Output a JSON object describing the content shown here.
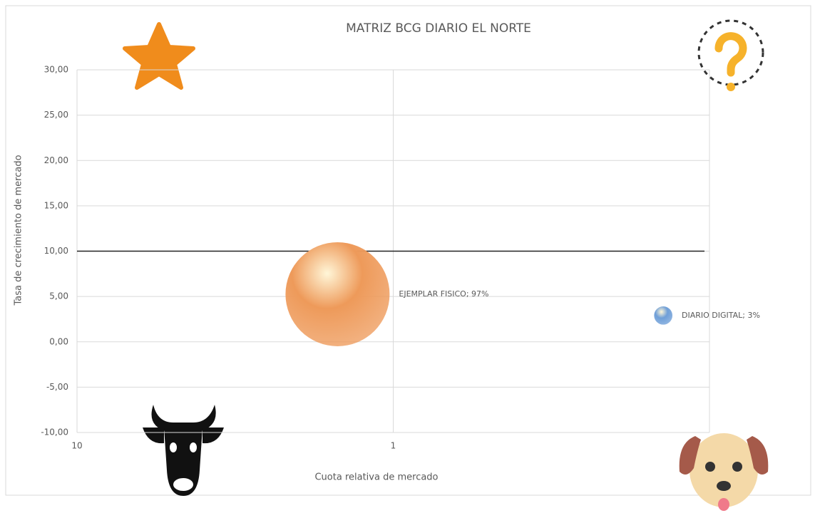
{
  "chart_data": {
    "type": "bubble",
    "title": "MATRIZ BCG DIARIO EL NORTE",
    "x_label": "Cuota relativa de mercado",
    "y_label": "Tasa de crecimiento de mercado",
    "x": [
      1.5,
      0.14
    ],
    "values": [
      5.25,
      2.9
    ],
    "sizes": [
      97,
      3
    ],
    "value_labels": [
      "EJEMPLAR FISICO; 97%",
      "DIARIO DIGITAL; 3%"
    ],
    "colors": [
      "#ee9a5a",
      "#6f9fd8"
    ],
    "xlim": [
      10,
      0.1
    ],
    "xticks": [
      10,
      1
    ],
    "x_log_scale": true,
    "ylim": [
      -10,
      30
    ],
    "yticks": [
      {
        "value": -10,
        "label": "-10,00"
      },
      {
        "value": -5,
        "label": "-5,00"
      },
      {
        "value": 0,
        "label": "0,00"
      },
      {
        "value": 5,
        "label": "5,00"
      },
      {
        "value": 10,
        "label": "10,00"
      },
      {
        "value": 15,
        "label": "15,00"
      },
      {
        "value": 20,
        "label": "20,00"
      },
      {
        "value": 25,
        "label": "25,00"
      },
      {
        "value": 30,
        "label": "30,00"
      }
    ],
    "reference_line": 10,
    "grid": true
  }
}
